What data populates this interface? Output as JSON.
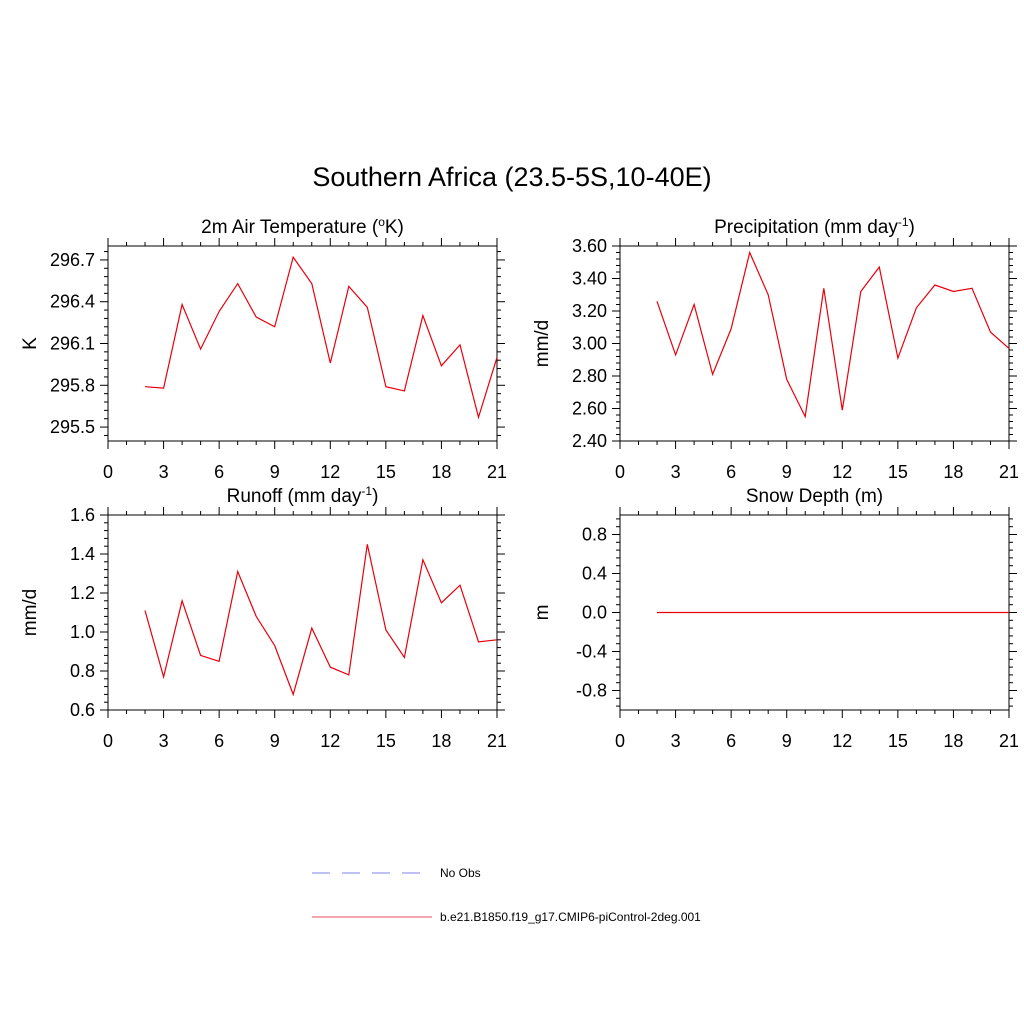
{
  "page": {
    "title": "Southern Africa (23.5-5S,10-40E)"
  },
  "chart_data": [
    {
      "type": "line",
      "title": "2m Air Temperature (",
      "title_sup": "o",
      "title_after": "K)",
      "ylabel": "K",
      "xlabel": "",
      "xlim": [
        0,
        21
      ],
      "ylim": [
        295.4,
        296.8
      ],
      "xticks": [
        0,
        3,
        6,
        9,
        12,
        15,
        18,
        21
      ],
      "yticks": [
        295.5,
        295.8,
        296.1,
        296.4,
        296.7
      ],
      "ytick_labels": [
        "295.5",
        "295.8",
        "296.1",
        "296.4",
        "296.7"
      ],
      "color": "#e8000b",
      "series": [
        {
          "x": [
            2,
            3,
            4,
            5,
            6,
            7,
            8,
            9,
            10,
            11,
            12,
            13,
            14,
            15,
            16,
            17,
            18,
            19,
            20,
            21
          ],
          "values": [
            295.79,
            295.78,
            296.38,
            296.06,
            296.33,
            296.53,
            296.29,
            296.22,
            296.72,
            296.53,
            295.96,
            296.51,
            296.36,
            295.79,
            295.76,
            296.3,
            295.94,
            296.09,
            295.57,
            296.0
          ]
        }
      ]
    },
    {
      "type": "line",
      "title": "Precipitation (mm day",
      "title_sup": "-1",
      "title_after": ")",
      "ylabel": "mm/d",
      "xlabel": "",
      "xlim": [
        0,
        21
      ],
      "ylim": [
        2.4,
        3.6
      ],
      "xticks": [
        0,
        3,
        6,
        9,
        12,
        15,
        18,
        21
      ],
      "yticks": [
        2.4,
        2.6,
        2.8,
        3.0,
        3.2,
        3.4,
        3.6
      ],
      "ytick_labels": [
        "2.40",
        "2.60",
        "2.80",
        "3.00",
        "3.20",
        "3.40",
        "3.60"
      ],
      "color": "#e8000b",
      "series": [
        {
          "x": [
            2,
            3,
            4,
            5,
            6,
            7,
            8,
            9,
            10,
            11,
            12,
            13,
            14,
            15,
            16,
            17,
            18,
            19,
            20,
            21
          ],
          "values": [
            3.26,
            2.93,
            3.24,
            2.81,
            3.09,
            3.56,
            3.3,
            2.78,
            2.55,
            3.34,
            2.59,
            3.32,
            3.47,
            2.91,
            3.22,
            3.36,
            3.32,
            3.34,
            3.07,
            2.97
          ]
        }
      ]
    },
    {
      "type": "line",
      "title": "Runoff (mm day",
      "title_sup": "-1",
      "title_after": ")",
      "ylabel": "mm/d",
      "xlabel": "",
      "xlim": [
        0,
        21
      ],
      "ylim": [
        0.6,
        1.6
      ],
      "xticks": [
        0,
        3,
        6,
        9,
        12,
        15,
        18,
        21
      ],
      "yticks": [
        0.6,
        0.8,
        1.0,
        1.2,
        1.4,
        1.6
      ],
      "ytick_labels": [
        "0.6",
        "0.8",
        "1.0",
        "1.2",
        "1.4",
        "1.6"
      ],
      "color": "#e8000b",
      "series": [
        {
          "x": [
            2,
            3,
            4,
            5,
            6,
            7,
            8,
            9,
            10,
            11,
            12,
            13,
            14,
            15,
            16,
            17,
            18,
            19,
            20,
            21
          ],
          "values": [
            1.11,
            0.77,
            1.16,
            0.88,
            0.85,
            1.31,
            1.08,
            0.93,
            0.68,
            1.02,
            0.82,
            0.78,
            1.45,
            1.01,
            0.87,
            1.37,
            1.15,
            1.24,
            0.95,
            0.96
          ]
        }
      ]
    },
    {
      "type": "line",
      "title": "Snow Depth (m)",
      "title_sup": "",
      "title_after": "",
      "ylabel": "m",
      "xlabel": "",
      "xlim": [
        0,
        21
      ],
      "ylim": [
        -1.0,
        1.0
      ],
      "xticks": [
        0,
        3,
        6,
        9,
        12,
        15,
        18,
        21
      ],
      "yticks": [
        -0.8,
        -0.4,
        0.0,
        0.4,
        0.8
      ],
      "ytick_labels": [
        "-0.8",
        "-0.4",
        "0.0",
        "0.4",
        "0.8"
      ],
      "color": "#e8000b",
      "series": [
        {
          "x": [
            2,
            3,
            4,
            5,
            6,
            7,
            8,
            9,
            10,
            11,
            12,
            13,
            14,
            15,
            16,
            17,
            18,
            19,
            20,
            21
          ],
          "values": [
            0,
            0,
            0,
            0,
            0,
            0,
            0,
            0,
            0,
            0,
            0,
            0,
            0,
            0,
            0,
            0,
            0,
            0,
            0,
            0
          ]
        }
      ]
    }
  ],
  "legend": {
    "items": [
      {
        "label": "No Obs",
        "style": "dashed",
        "color": "#9a9af0"
      },
      {
        "label": "b.e21.B1850.f19_g17.CMIP6-piControl-2deg.001",
        "style": "solid",
        "color": "#f07080"
      }
    ]
  }
}
